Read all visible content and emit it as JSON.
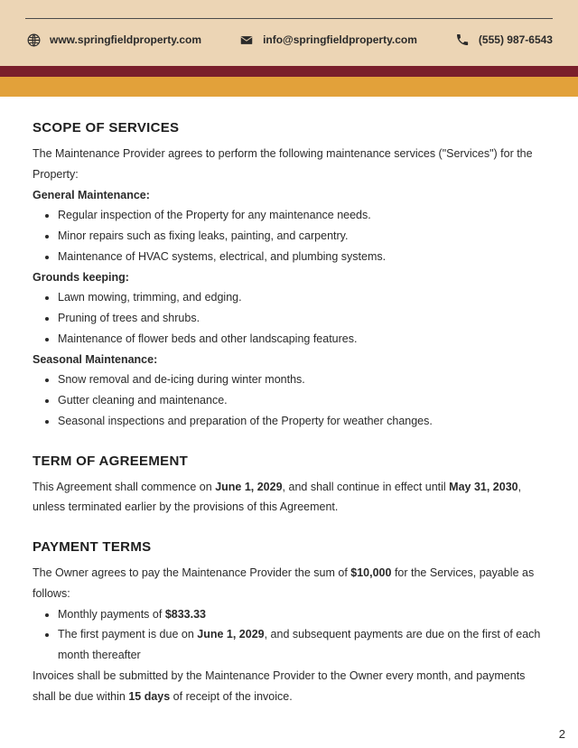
{
  "header": {
    "website": "www.springfieldproperty.com",
    "email": "info@springfieldproperty.com",
    "phone": "(555) 987-6543",
    "colors": {
      "background": "#ecd5b5",
      "stripe_top": "#7a1f2b",
      "stripe_bottom": "#e2a13a"
    }
  },
  "sections": {
    "scope": {
      "title": "SCOPE OF SERVICES",
      "intro": "The Maintenance Provider agrees to perform the following maintenance services (\"Services\") for the Property:",
      "groups": [
        {
          "heading": "General Maintenance:",
          "items": [
            "Regular inspection of the Property for any maintenance needs.",
            "Minor repairs such as fixing leaks, painting, and carpentry.",
            "Maintenance of HVAC systems, electrical, and plumbing systems."
          ]
        },
        {
          "heading": "Grounds keeping:",
          "items": [
            "Lawn mowing, trimming, and edging.",
            "Pruning of trees and shrubs.",
            "Maintenance of flower beds and other landscaping features."
          ]
        },
        {
          "heading": "Seasonal Maintenance:",
          "items": [
            "Snow removal and de-icing during winter months.",
            "Gutter cleaning and maintenance.",
            "Seasonal inspections and preparation of the Property for weather changes."
          ]
        }
      ]
    },
    "term": {
      "title": "TERM OF AGREEMENT",
      "text_pre": "This Agreement shall commence on ",
      "date1": "June 1, 2029",
      "text_mid": ", and shall continue in effect until ",
      "date2": "May 31, 2030",
      "text_post": ", unless terminated earlier by the provisions of this Agreement."
    },
    "payment": {
      "title": "PAYMENT TERMS",
      "intro_pre": "The Owner agrees to pay the Maintenance Provider the sum of ",
      "amount": "$10,000",
      "intro_post": " for the Services, payable as follows:",
      "items": [
        {
          "pre": "Monthly payments of ",
          "bold": "$833.33",
          "post": ""
        },
        {
          "pre": "The first payment is due on ",
          "bold": "June 1, 2029",
          "post": ", and subsequent payments are due on the first of each month thereafter"
        }
      ],
      "footer_pre": "Invoices shall be submitted by the Maintenance Provider to the Owner every month, and payments shall be due within ",
      "footer_bold": "15 days",
      "footer_post": " of receipt of the invoice."
    }
  },
  "page_number": "2"
}
